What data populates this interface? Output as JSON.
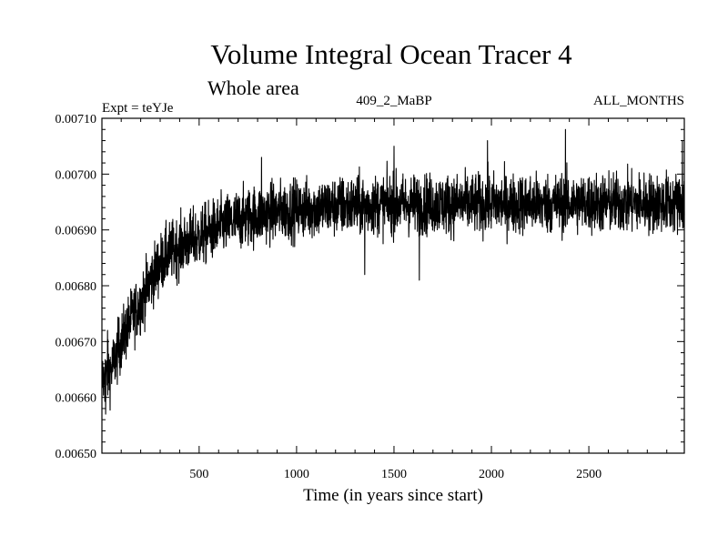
{
  "chart_data": {
    "type": "line",
    "title": "Volume Integral Ocean Tracer 4",
    "subtitle": "Whole area",
    "header_left": "Expt = teYJe",
    "header_center": "409_2_MaBP",
    "header_right": "ALL_MONTHS",
    "xlabel": "Time (in years since start)",
    "ylabel": "",
    "xlim": [
      1,
      2990
    ],
    "ylim": [
      0.0065,
      0.0071
    ],
    "xticks": [
      500,
      1000,
      1500,
      2000,
      2500
    ],
    "xtick_labels": [
      "500",
      "1000",
      "1500",
      "2000",
      "2500"
    ],
    "yticks": [
      0.0065,
      0.0066,
      0.0067,
      0.0068,
      0.0069,
      0.007,
      0.0071
    ],
    "ytick_labels": [
      "0.00650",
      "0.00660",
      "0.00670",
      "0.00680",
      "0.00690",
      "0.00700",
      "0.00710"
    ],
    "series": [
      {
        "name": "Volume Integral Ocean Tracer 4",
        "color": "#000000",
        "trend": {
          "x": [
            1,
            50,
            100,
            150,
            200,
            250,
            300,
            350,
            400,
            450,
            500,
            600,
            700,
            800,
            900,
            1000,
            1200,
            1400,
            1600,
            1800,
            2000,
            2200,
            2400,
            2600,
            2800,
            2990
          ],
          "y": [
            0.00663,
            0.00665,
            0.0067,
            0.00674,
            0.00677,
            0.00681,
            0.00684,
            0.00686,
            0.00687,
            0.00688,
            0.006887,
            0.006905,
            0.006918,
            0.006927,
            0.006933,
            0.006937,
            0.006942,
            0.006945,
            0.006946,
            0.006946,
            0.006947,
            0.006947,
            0.006948,
            0.006948,
            0.006948,
            0.006948
          ]
        },
        "noise_amplitude": 4.5e-05,
        "sample_step_years": 1,
        "extremes": [
          {
            "x": 20,
            "y": 0.00657
          },
          {
            "x": 30,
            "y": 0.00672
          },
          {
            "x": 820,
            "y": 0.00703
          },
          {
            "x": 1350,
            "y": 0.00682
          },
          {
            "x": 1500,
            "y": 0.00705
          },
          {
            "x": 1630,
            "y": 0.00681
          },
          {
            "x": 1980,
            "y": 0.00706
          },
          {
            "x": 2380,
            "y": 0.00708
          },
          {
            "x": 2980,
            "y": 0.00706
          }
        ]
      }
    ]
  }
}
